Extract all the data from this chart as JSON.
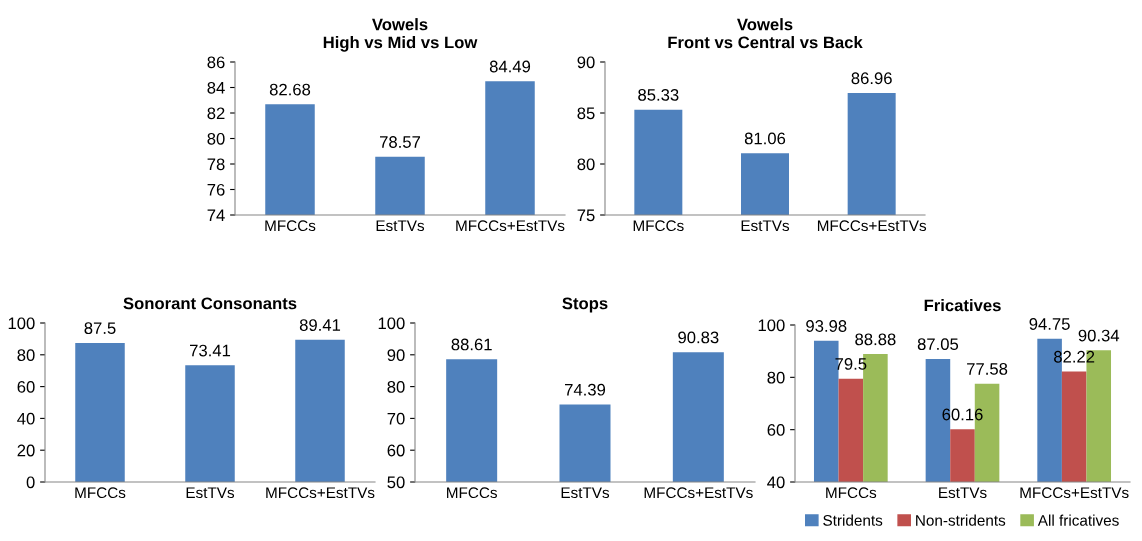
{
  "chart_data": [
    {
      "type": "bar",
      "title": "Vowels\nHigh vs Mid vs Low",
      "categories": [
        "MFCCs",
        "EstTVs",
        "MFCCs+EstTVs"
      ],
      "values": [
        82.68,
        78.57,
        84.49
      ],
      "color": "#4f81bd",
      "ylim": [
        74,
        86
      ],
      "yticks": [
        74,
        76,
        78,
        80,
        82,
        84,
        86
      ],
      "data_labels": true,
      "grid": false
    },
    {
      "type": "bar",
      "title": "Vowels\nFront vs Central vs Back",
      "categories": [
        "MFCCs",
        "EstTVs",
        "MFCCs+EstTVs"
      ],
      "values": [
        85.33,
        81.06,
        86.96
      ],
      "color": "#4f81bd",
      "ylim": [
        75,
        90
      ],
      "yticks": [
        75,
        80,
        85,
        90
      ],
      "data_labels": true,
      "grid": false
    },
    {
      "type": "bar",
      "title": "Sonorant Consonants",
      "categories": [
        "MFCCs",
        "EstTVs",
        "MFCCs+EstTVs"
      ],
      "values": [
        87.5,
        73.41,
        89.41
      ],
      "color": "#4f81bd",
      "ylim": [
        0,
        100
      ],
      "yticks": [
        0,
        20,
        40,
        60,
        80,
        100
      ],
      "data_labels": true,
      "grid": false
    },
    {
      "type": "bar",
      "title": "Stops",
      "categories": [
        "MFCCs",
        "EstTVs",
        "MFCCs+EstTVs"
      ],
      "values": [
        88.61,
        74.39,
        90.83
      ],
      "color": "#4f81bd",
      "ylim": [
        50,
        100
      ],
      "yticks": [
        50,
        60,
        70,
        80,
        90,
        100
      ],
      "data_labels": true,
      "grid": false
    },
    {
      "type": "bar",
      "title": "Fricatives",
      "categories": [
        "MFCCs",
        "EstTVs",
        "MFCCs+EstTVs"
      ],
      "series": [
        {
          "name": "Stridents",
          "color": "#4f81bd",
          "values": [
            93.98,
            87.05,
            94.75
          ]
        },
        {
          "name": "Non-stridents",
          "color": "#c0504d",
          "values": [
            79.5,
            60.16,
            82.22
          ]
        },
        {
          "name": "All fricatives",
          "color": "#9bbb59",
          "values": [
            88.88,
            77.58,
            90.34
          ]
        }
      ],
      "ylim": [
        40,
        100
      ],
      "yticks": [
        40,
        60,
        80,
        100
      ],
      "data_labels": true,
      "grid": false,
      "legend": "bottom"
    }
  ]
}
